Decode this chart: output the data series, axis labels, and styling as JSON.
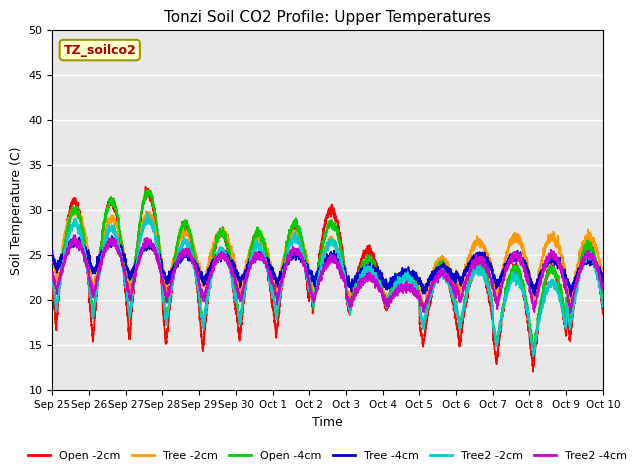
{
  "title": "Tonzi Soil CO2 Profile: Upper Temperatures",
  "xlabel": "Time",
  "ylabel": "Soil Temperature (C)",
  "ylim": [
    10,
    50
  ],
  "xlim": [
    0,
    15
  ],
  "annotation_text": "TZ_soilco2",
  "annotation_bg": "#ffffcc",
  "annotation_edge": "#999900",
  "bg_color": "#e8e8e8",
  "grid_color": "#ffffff",
  "tick_labels": [
    "Sep 25",
    "Sep 26",
    "Sep 27",
    "Sep 28",
    "Sep 29",
    "Sep 30",
    "Oct 1",
    "Oct 2",
    "Oct 3",
    "Oct 4",
    "Oct 5",
    "Oct 6",
    "Oct 7",
    "Oct 8",
    "Oct 9",
    "Oct 10"
  ],
  "series_names": [
    "Open -2cm",
    "Tree -2cm",
    "Open -4cm",
    "Tree -4cm",
    "Tree2 -2cm",
    "Tree2 -4cm"
  ],
  "series_colors": [
    "#ff0000",
    "#ff9900",
    "#00cc00",
    "#0000cc",
    "#00cccc",
    "#cc00cc"
  ],
  "series_lw": [
    1.2,
    1.2,
    1.2,
    1.2,
    1.2,
    1.2
  ]
}
